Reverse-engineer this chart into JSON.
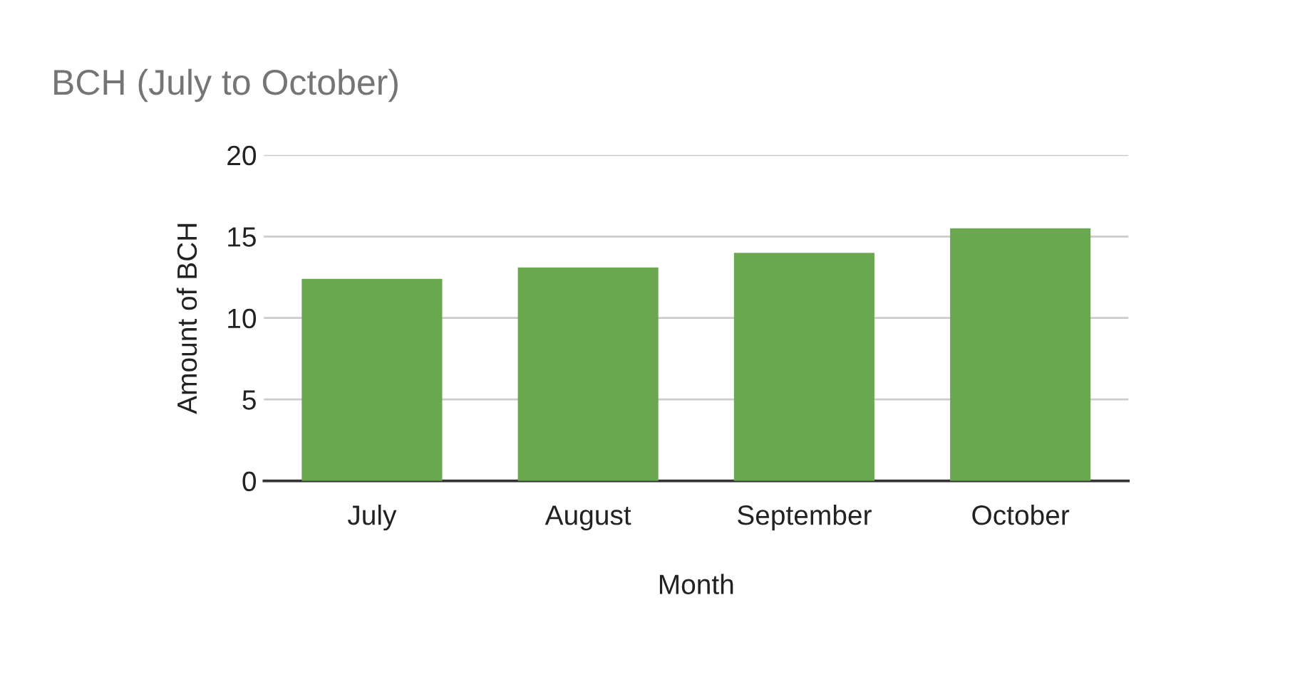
{
  "chart_data": {
    "type": "bar",
    "title": "BCH (July to October)",
    "xlabel": "Month",
    "ylabel": "Amount of BCH",
    "categories": [
      "July",
      "August",
      "September",
      "October"
    ],
    "values": [
      12.4,
      13.1,
      14.0,
      15.5
    ],
    "color": "#6aa84f",
    "ylim": [
      0,
      20
    ],
    "yticks": [
      0,
      5,
      10,
      15,
      20
    ],
    "grid": "y"
  }
}
